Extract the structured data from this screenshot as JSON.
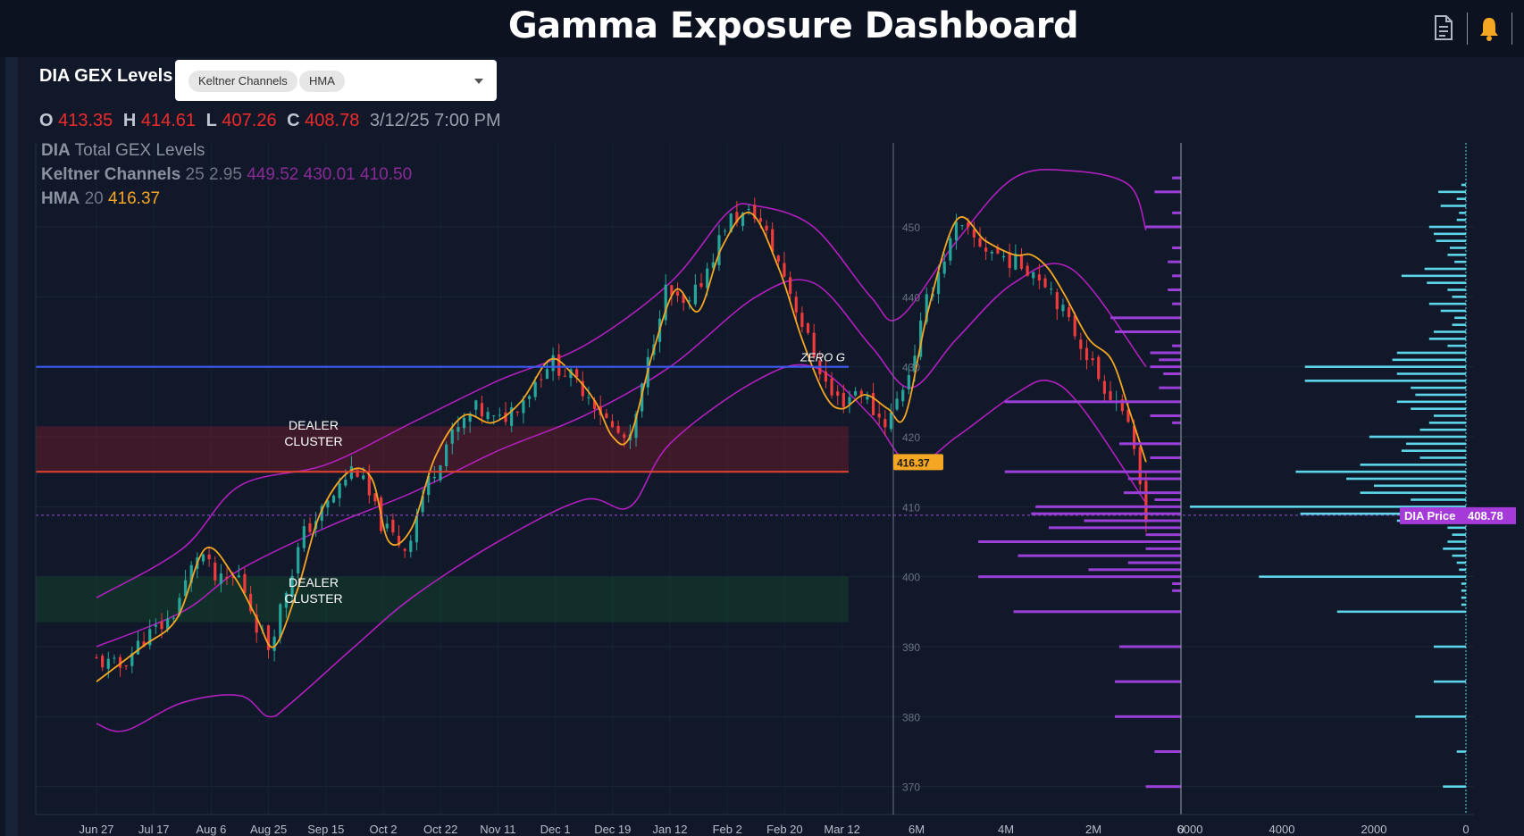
{
  "header": {
    "title": "Gamma Exposure Dashboard"
  },
  "toolbar": {
    "icons": [
      "document-icon",
      "bell-icon"
    ],
    "bell_color": "#f5a623"
  },
  "panel": {
    "chart_name": "DIA GEX Levels",
    "indicator_chips": [
      "Keltner Channels",
      "HMA"
    ],
    "ohlc": {
      "o_label": "O",
      "o": "413.35",
      "h_label": "H",
      "h": "414.61",
      "l_label": "L",
      "l": "407.26",
      "c_label": "C",
      "c": "408.78",
      "datetime": "3/12/25 7:00 PM"
    },
    "legend": {
      "main_symbol": "DIA",
      "main_name": "Total GEX Levels",
      "kc_name": "Keltner Channels",
      "kc_params": "25 2.95",
      "kc_values": "449.52 430.01 410.50",
      "hma_name": "HMA",
      "hma_param": "20",
      "hma_value": "416.37"
    },
    "annotations": {
      "dealer_top": [
        "DEALER",
        "CLUSTER"
      ],
      "dealer_bottom": [
        "DEALER",
        "CLUSTER"
      ],
      "zero_g": "ZERO G"
    },
    "badges": {
      "hma_badge": "416.37",
      "price_label": "DIA Price",
      "price_value": "408.78"
    }
  },
  "colors": {
    "background": "#101829",
    "candle_up": "#26a69a",
    "candle_down": "#ef3b3b",
    "hma": "#f5a623",
    "keltner": "#b21fbf",
    "zero_gamma_line": "#3d5af1",
    "resistance_line": "#d8412f",
    "gex_bars_left": "#9b3fd8",
    "gex_bars_right": "#5cd6e8"
  },
  "chart_data": [
    {
      "type": "candlestick",
      "x_ticks": [
        "Jun 27",
        "Jul 17",
        "Aug 6",
        "Aug 25",
        "Sep 15",
        "Oct 2",
        "Oct 22",
        "Nov 11",
        "Dec 1",
        "Dec 19",
        "Jan 12",
        "Feb 2",
        "Feb 20",
        "Mar 12"
      ],
      "y_ticks": [
        370,
        380,
        390,
        400,
        410,
        420,
        430,
        440,
        450
      ],
      "ylim": [
        366,
        462
      ],
      "close_path": [
        {
          "x": 0,
          "y": 388
        },
        {
          "x": 0.4,
          "y": 387
        },
        {
          "x": 0.8,
          "y": 391
        },
        {
          "x": 1.3,
          "y": 394
        },
        {
          "x": 1.8,
          "y": 404
        },
        {
          "x": 2.1,
          "y": 399
        },
        {
          "x": 2.5,
          "y": 400
        },
        {
          "x": 2.8,
          "y": 393
        },
        {
          "x": 3.0,
          "y": 390
        },
        {
          "x": 3.3,
          "y": 398
        },
        {
          "x": 3.6,
          "y": 406
        },
        {
          "x": 4.0,
          "y": 410
        },
        {
          "x": 4.5,
          "y": 416
        },
        {
          "x": 5.0,
          "y": 407
        },
        {
          "x": 5.4,
          "y": 404
        },
        {
          "x": 5.7,
          "y": 412
        },
        {
          "x": 6.1,
          "y": 419
        },
        {
          "x": 6.6,
          "y": 424
        },
        {
          "x": 7.0,
          "y": 422
        },
        {
          "x": 7.5,
          "y": 426
        },
        {
          "x": 7.9,
          "y": 431
        },
        {
          "x": 8.2,
          "y": 429
        },
        {
          "x": 8.6,
          "y": 426
        },
        {
          "x": 9.0,
          "y": 421
        },
        {
          "x": 9.3,
          "y": 419
        },
        {
          "x": 9.6,
          "y": 430
        },
        {
          "x": 9.9,
          "y": 441
        },
        {
          "x": 10.3,
          "y": 438
        },
        {
          "x": 10.7,
          "y": 445
        },
        {
          "x": 11.0,
          "y": 451
        },
        {
          "x": 11.5,
          "y": 452
        },
        {
          "x": 12.0,
          "y": 443
        },
        {
          "x": 12.4,
          "y": 434
        },
        {
          "x": 12.8,
          "y": 426
        },
        {
          "x": 13.0,
          "y": 425
        },
        {
          "x": 13.3,
          "y": 427
        },
        {
          "x": 13.6,
          "y": 423
        },
        {
          "x": 13.8,
          "y": 422
        },
        {
          "x": 14.2,
          "y": 430
        },
        {
          "x": 14.5,
          "y": 440
        },
        {
          "x": 15.0,
          "y": 450
        },
        {
          "x": 15.5,
          "y": 447
        },
        {
          "x": 16.0,
          "y": 445
        },
        {
          "x": 16.3,
          "y": 444
        },
        {
          "x": 16.6,
          "y": 442
        },
        {
          "x": 16.9,
          "y": 437
        },
        {
          "x": 17.2,
          "y": 433
        },
        {
          "x": 17.5,
          "y": 428
        },
        {
          "x": 17.9,
          "y": 424
        },
        {
          "x": 18.1,
          "y": 417
        },
        {
          "x": 18.3,
          "y": 409
        }
      ],
      "hma_path": [
        {
          "x": 0,
          "y": 385
        },
        {
          "x": 0.8,
          "y": 390
        },
        {
          "x": 1.4,
          "y": 394
        },
        {
          "x": 1.9,
          "y": 404
        },
        {
          "x": 2.4,
          "y": 400
        },
        {
          "x": 2.8,
          "y": 394
        },
        {
          "x": 3.1,
          "y": 390
        },
        {
          "x": 3.5,
          "y": 398
        },
        {
          "x": 3.9,
          "y": 409
        },
        {
          "x": 4.4,
          "y": 415
        },
        {
          "x": 4.8,
          "y": 414
        },
        {
          "x": 5.1,
          "y": 405
        },
        {
          "x": 5.5,
          "y": 407
        },
        {
          "x": 5.9,
          "y": 417
        },
        {
          "x": 6.4,
          "y": 423
        },
        {
          "x": 6.9,
          "y": 422
        },
        {
          "x": 7.4,
          "y": 425
        },
        {
          "x": 7.9,
          "y": 431
        },
        {
          "x": 8.3,
          "y": 429
        },
        {
          "x": 8.7,
          "y": 425
        },
        {
          "x": 9.0,
          "y": 420
        },
        {
          "x": 9.3,
          "y": 420
        },
        {
          "x": 9.7,
          "y": 432
        },
        {
          "x": 10.1,
          "y": 441
        },
        {
          "x": 10.5,
          "y": 438
        },
        {
          "x": 10.9,
          "y": 447
        },
        {
          "x": 11.4,
          "y": 452
        },
        {
          "x": 11.9,
          "y": 444
        },
        {
          "x": 12.3,
          "y": 434
        },
        {
          "x": 12.7,
          "y": 426
        },
        {
          "x": 13.0,
          "y": 424
        },
        {
          "x": 13.4,
          "y": 426
        },
        {
          "x": 13.8,
          "y": 424
        },
        {
          "x": 14.1,
          "y": 423
        },
        {
          "x": 14.5,
          "y": 438
        },
        {
          "x": 15.0,
          "y": 451
        },
        {
          "x": 15.5,
          "y": 448
        },
        {
          "x": 16.0,
          "y": 446
        },
        {
          "x": 16.3,
          "y": 446
        },
        {
          "x": 16.6,
          "y": 444
        },
        {
          "x": 16.9,
          "y": 440
        },
        {
          "x": 17.3,
          "y": 434
        },
        {
          "x": 17.7,
          "y": 431
        },
        {
          "x": 18.0,
          "y": 424
        },
        {
          "x": 18.3,
          "y": 416.37
        }
      ],
      "keltner_upper": [
        {
          "x": 0,
          "y": 397
        },
        {
          "x": 1.5,
          "y": 404
        },
        {
          "x": 2.5,
          "y": 413
        },
        {
          "x": 4.0,
          "y": 416
        },
        {
          "x": 5.5,
          "y": 422
        },
        {
          "x": 7.0,
          "y": 428
        },
        {
          "x": 8.5,
          "y": 433
        },
        {
          "x": 10.0,
          "y": 442
        },
        {
          "x": 11.0,
          "y": 452
        },
        {
          "x": 11.5,
          "y": 453
        },
        {
          "x": 12.5,
          "y": 450
        },
        {
          "x": 13.5,
          "y": 440
        },
        {
          "x": 14.0,
          "y": 437
        },
        {
          "x": 15.0,
          "y": 448
        },
        {
          "x": 16.0,
          "y": 457
        },
        {
          "x": 17.0,
          "y": 458
        },
        {
          "x": 18.0,
          "y": 456
        },
        {
          "x": 18.3,
          "y": 449.52
        }
      ],
      "keltner_middle": [
        {
          "x": 0,
          "y": 390
        },
        {
          "x": 1.5,
          "y": 395
        },
        {
          "x": 2.5,
          "y": 401
        },
        {
          "x": 4.0,
          "y": 407
        },
        {
          "x": 5.5,
          "y": 412
        },
        {
          "x": 7.0,
          "y": 418
        },
        {
          "x": 8.5,
          "y": 423
        },
        {
          "x": 10.0,
          "y": 430
        },
        {
          "x": 11.5,
          "y": 440
        },
        {
          "x": 12.5,
          "y": 442
        },
        {
          "x": 13.5,
          "y": 433
        },
        {
          "x": 14.2,
          "y": 427
        },
        {
          "x": 15.0,
          "y": 434
        },
        {
          "x": 16.0,
          "y": 442
        },
        {
          "x": 17.0,
          "y": 444
        },
        {
          "x": 18.3,
          "y": 430.01
        }
      ],
      "keltner_lower": [
        {
          "x": 0,
          "y": 379
        },
        {
          "x": 0.5,
          "y": 378
        },
        {
          "x": 1.5,
          "y": 382
        },
        {
          "x": 2.5,
          "y": 383
        },
        {
          "x": 3.0,
          "y": 380
        },
        {
          "x": 3.4,
          "y": 382
        },
        {
          "x": 4.5,
          "y": 390
        },
        {
          "x": 5.5,
          "y": 397
        },
        {
          "x": 7.0,
          "y": 405
        },
        {
          "x": 8.5,
          "y": 411
        },
        {
          "x": 9.3,
          "y": 410
        },
        {
          "x": 10.0,
          "y": 419
        },
        {
          "x": 11.5,
          "y": 428
        },
        {
          "x": 12.5,
          "y": 430
        },
        {
          "x": 13.5,
          "y": 423
        },
        {
          "x": 14.2,
          "y": 416
        },
        {
          "x": 15.0,
          "y": 420
        },
        {
          "x": 16.0,
          "y": 426
        },
        {
          "x": 16.6,
          "y": 428
        },
        {
          "x": 17.2,
          "y": 424
        },
        {
          "x": 18.3,
          "y": 410.5
        }
      ],
      "zero_gamma": 430,
      "resistance_level": 415,
      "dealer_cluster_top_range": [
        415,
        421.5
      ],
      "dealer_cluster_bottom_range": [
        393.5,
        400
      ],
      "grid": true
    },
    {
      "type": "bar",
      "orientation": "horizontal",
      "name": "Total GEX Levels",
      "x_ticks": [
        "6M",
        "4M",
        "2M",
        "0"
      ],
      "xlim": [
        6,
        0
      ],
      "strikes": [
        457,
        455,
        452,
        450,
        447,
        445,
        443,
        441,
        439,
        437,
        435,
        433,
        432,
        431,
        430,
        429,
        427,
        425,
        423,
        422,
        419,
        417,
        415,
        414,
        412,
        411,
        410,
        409,
        408,
        407,
        406,
        405,
        404,
        403,
        402,
        401,
        400,
        399,
        398,
        395,
        390,
        385,
        380,
        375,
        370
      ],
      "values": [
        0.2,
        0.6,
        0.2,
        0.8,
        0.2,
        0.3,
        0.2,
        0.3,
        0.2,
        1.6,
        1.5,
        0.2,
        0.7,
        0.5,
        0.7,
        0.4,
        0.5,
        4.0,
        0.7,
        0.2,
        1.4,
        0.7,
        4.0,
        1.2,
        1.3,
        0.6,
        3.3,
        3.4,
        2.2,
        3.0,
        0.8,
        4.6,
        0.8,
        3.7,
        1.2,
        2.1,
        4.6,
        0.2,
        0.2,
        3.8,
        1.4,
        1.5,
        1.5,
        0.6,
        0.8
      ]
    },
    {
      "type": "bar",
      "orientation": "horizontal",
      "x_ticks": [
        "6000",
        "4000",
        "2000",
        "0"
      ],
      "xlim": [
        6000,
        0
      ],
      "strikes": [
        456,
        455,
        454,
        453,
        452,
        451,
        450,
        449,
        448,
        447,
        446,
        445,
        444,
        443,
        442,
        441,
        440,
        439,
        438,
        437,
        436,
        435,
        434,
        433,
        432,
        431,
        430,
        429,
        428,
        427,
        426,
        425,
        424,
        423,
        422,
        421,
        420,
        419,
        418,
        417,
        416,
        415,
        414,
        413,
        412,
        411,
        410,
        409,
        408,
        407,
        406,
        405,
        404,
        403,
        402,
        401,
        400,
        399,
        398,
        397,
        396,
        395,
        390,
        385,
        380,
        375,
        370
      ],
      "values": [
        100,
        600,
        200,
        550,
        150,
        200,
        800,
        700,
        650,
        350,
        400,
        250,
        900,
        1400,
        850,
        400,
        300,
        800,
        550,
        250,
        300,
        700,
        800,
        400,
        1500,
        1600,
        3500,
        1500,
        3500,
        1200,
        1100,
        1500,
        1200,
        700,
        800,
        1000,
        2100,
        1300,
        1400,
        1000,
        2300,
        3700,
        2600,
        2000,
        2300,
        1200,
        6000,
        3600,
        1500,
        400,
        300,
        400,
        500,
        300,
        200,
        150,
        4500,
        100,
        100,
        100,
        100,
        2800,
        700,
        700,
        1100,
        200,
        500
      ]
    }
  ]
}
